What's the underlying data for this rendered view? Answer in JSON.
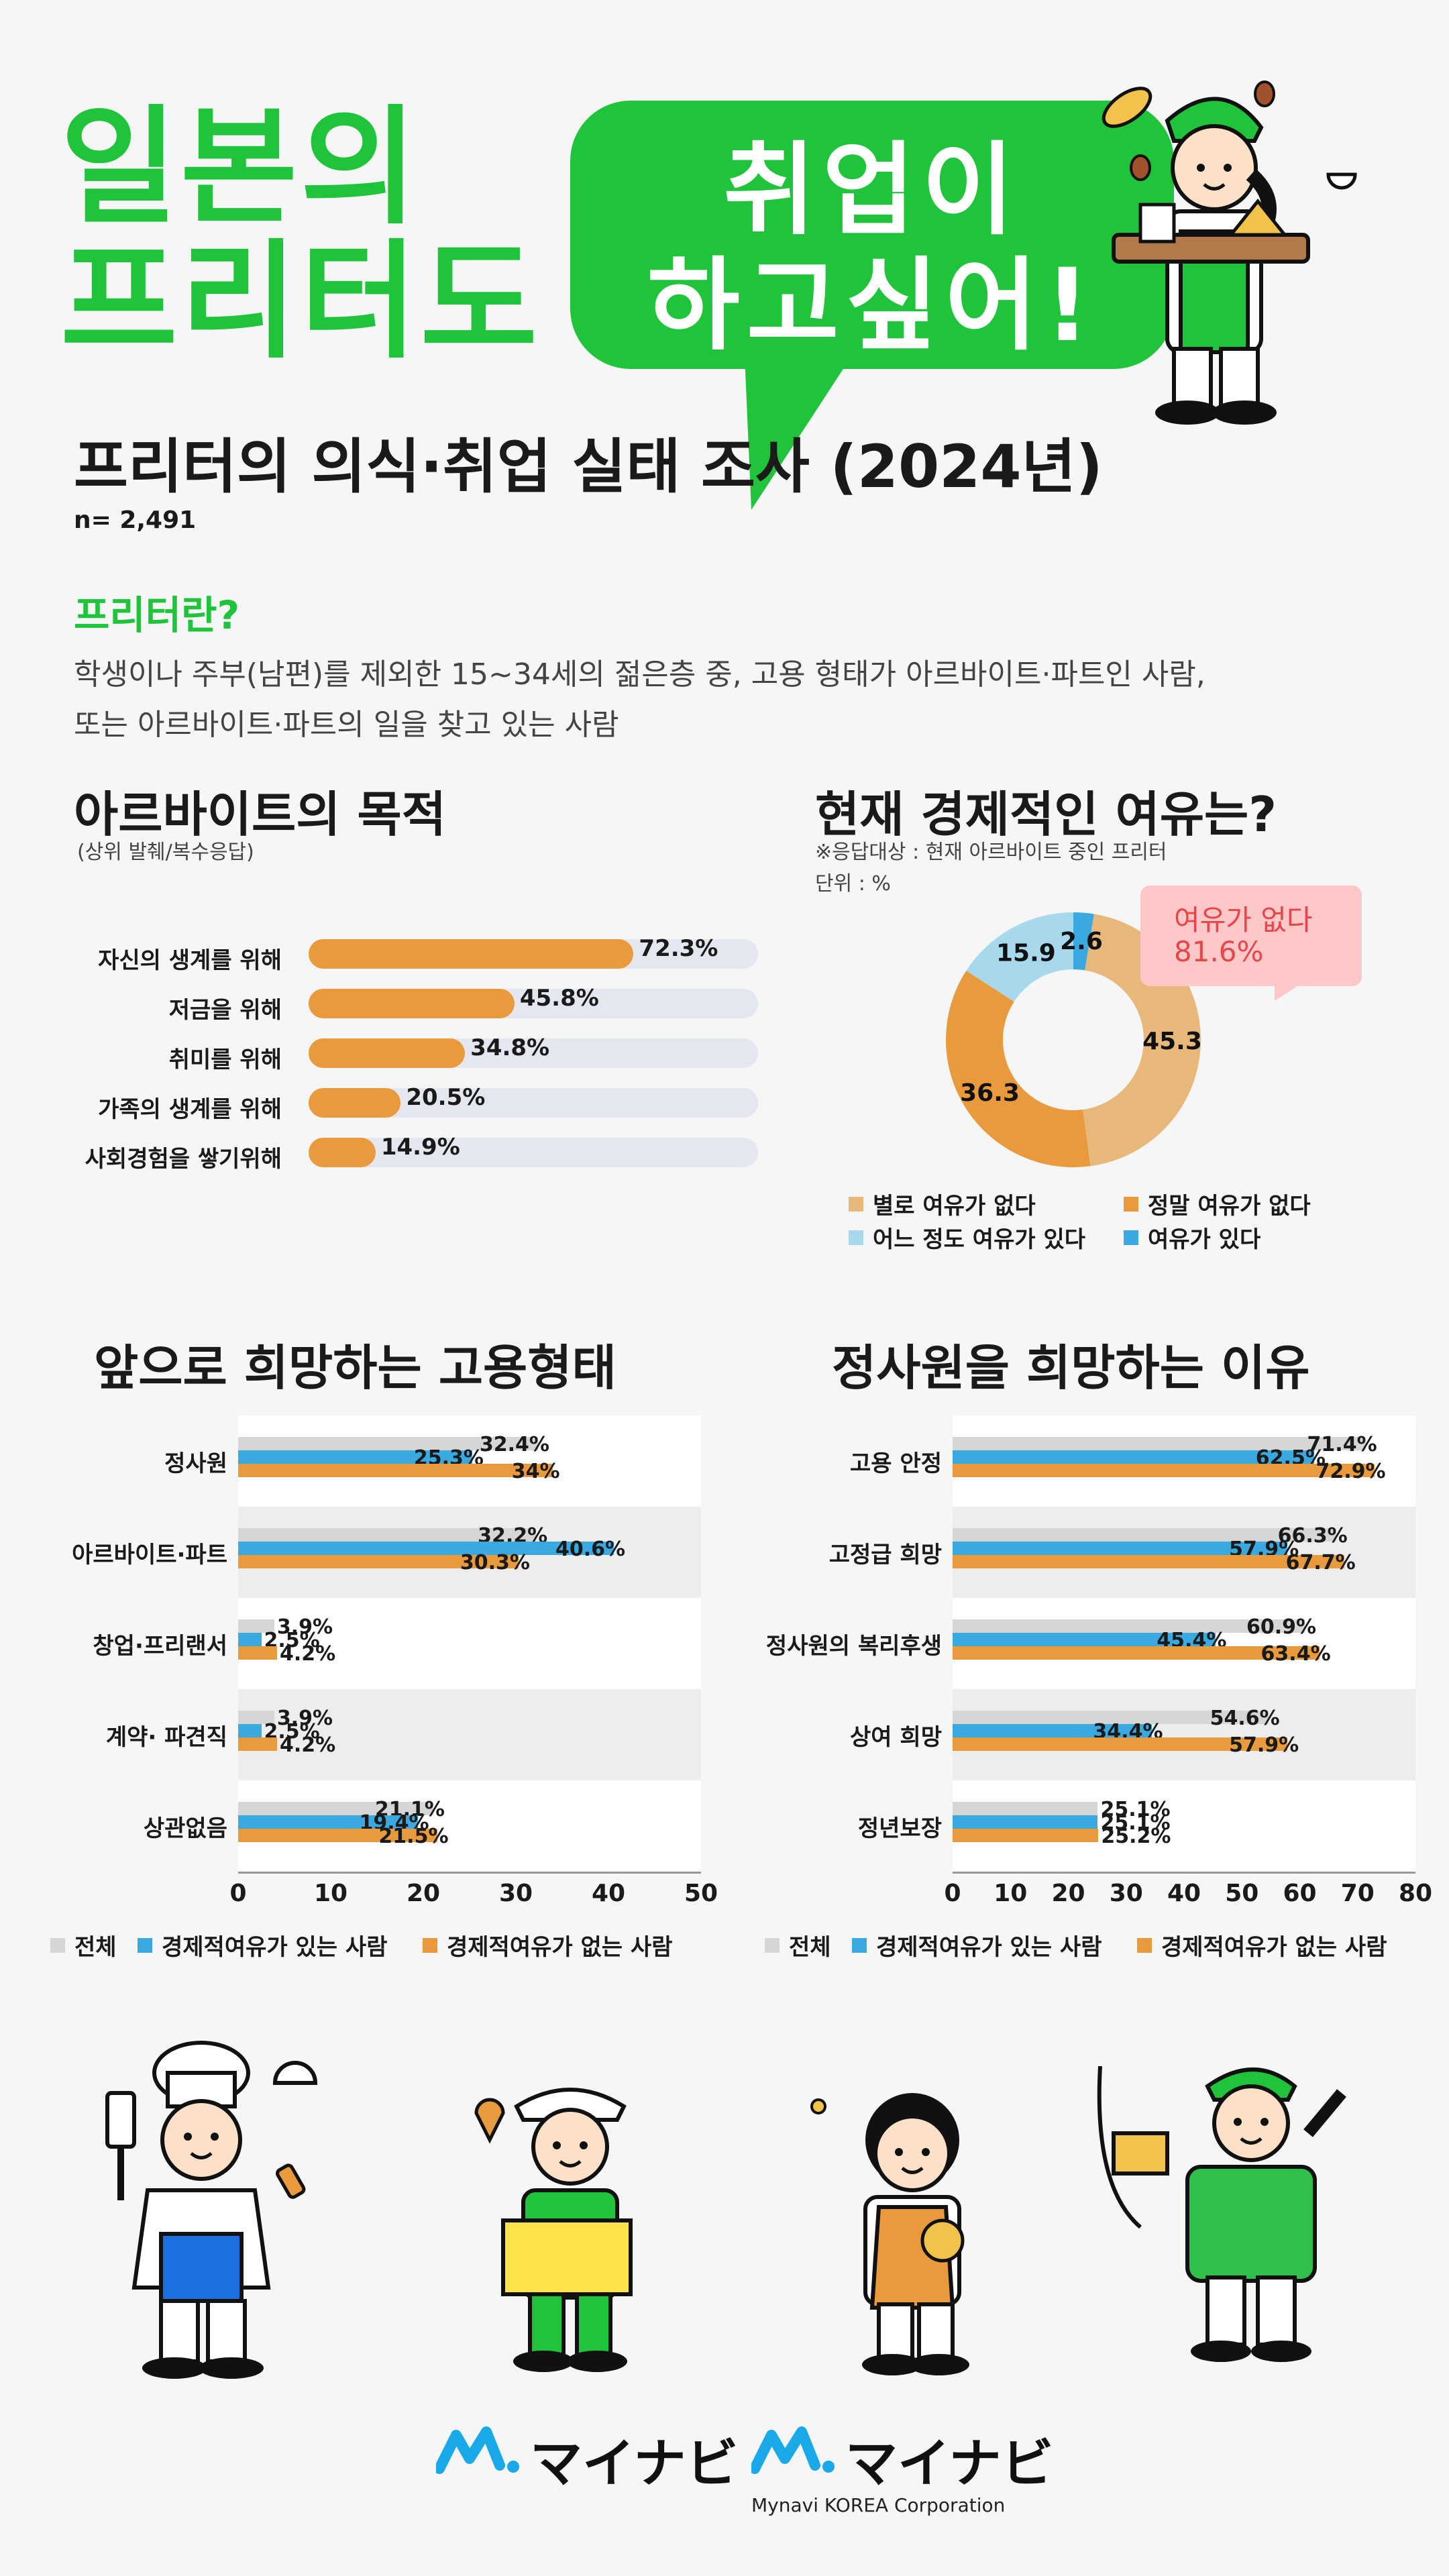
{
  "header": {
    "title_line1": "일본의",
    "title_line2": "프리터도",
    "bubble_line1": "취업이",
    "bubble_line2": "하고싶어!"
  },
  "survey": {
    "title": "프리터의 의식·취업 실태 조사 (2024년)",
    "n": "n= 2,491"
  },
  "definition": {
    "heading": "프리터란?",
    "line1": "학생이나 주부(남편)를 제외한 15~34세의 젊은층 중, 고용 형태가 아르바이트·파트인 사람,",
    "line2": "또는 아르바이트·파트의 일을 찾고 있는 사람"
  },
  "colors": {
    "orange": "#e89a3c",
    "blue": "#3aa9e0",
    "gray": "#d6d6d6",
    "light_orange": "#e8b77a",
    "light_blue": "#a8d8ec",
    "track": "#e4e7ef",
    "green": "#1fc43a",
    "pink_bg": "#ffc8c8",
    "pink_text": "#e8454a"
  },
  "chart_data": [
    {
      "type": "bar",
      "title": "아르바이트의 목적",
      "subtitle": "(상위 발췌/복수응답)",
      "categories": [
        "자신의 생계를 위해",
        "저금을 위해",
        "취미를 위해",
        "가족의 생계를 위해",
        "사회경험을 쌓기위해"
      ],
      "values": [
        72.3,
        45.8,
        34.8,
        20.5,
        14.9
      ],
      "value_labels": [
        "72.3%",
        "45.8%",
        "34.8%",
        "20.5%",
        "14.9%"
      ],
      "orientation": "horizontal",
      "xlim": [
        0,
        100
      ]
    },
    {
      "type": "pie",
      "title": "현재 경제적인 여유는?",
      "subtitle": "※응답대상 : 현재 아르바이트 중인 프리터",
      "unit": "단위 : %",
      "labels": [
        "별로 여유가 없다",
        "정말 여유가 없다",
        "어느 정도 여유가 있다",
        "여유가 있다"
      ],
      "values": [
        45.3,
        36.3,
        15.9,
        2.6
      ],
      "value_labels": [
        "45.3",
        "36.3",
        "15.9",
        "2.6"
      ],
      "colors": [
        "#e8b77a",
        "#e89a3c",
        "#a8d8ec",
        "#3aa9e0"
      ],
      "callout": "여유가 없다",
      "callout_value": "81.6%",
      "donut": true
    },
    {
      "type": "bar",
      "title": "앞으로 희망하는 고용형태",
      "orientation": "horizontal",
      "categories": [
        "정사원",
        "아르바이트·파트",
        "창업·프리랜서",
        "계약· 파견직",
        "상관없음"
      ],
      "series": [
        {
          "name": "전체",
          "values": [
            32.4,
            32.2,
            3.9,
            3.9,
            21.1
          ],
          "labels": [
            "32.4%",
            "32.2%",
            "3.9%",
            "3.9%",
            "21.1%"
          ]
        },
        {
          "name": "경제적여유가 있는 사람",
          "values": [
            25.3,
            40.6,
            2.5,
            2.5,
            19.4
          ],
          "labels": [
            "25.3%",
            "40.6%",
            "2.5%",
            "2.5%",
            "19.4%"
          ]
        },
        {
          "name": "경제적여유가 없는 사람",
          "values": [
            34,
            30.3,
            4.2,
            4.2,
            21.5
          ],
          "labels": [
            "34%",
            "30.3%",
            "4.2%",
            "4.2%",
            "21.5%"
          ]
        }
      ],
      "xlim": [
        0,
        50
      ],
      "ticks": [
        "0",
        "10",
        "20",
        "30",
        "40",
        "50"
      ],
      "legend_position": "bottom"
    },
    {
      "type": "bar",
      "title": "정사원을 희망하는 이유",
      "orientation": "horizontal",
      "categories": [
        "고용 안정",
        "고정급 희망",
        "정사원의 복리후생",
        "상여 희망",
        "정년보장"
      ],
      "series": [
        {
          "name": "전체",
          "values": [
            71.4,
            66.3,
            60.9,
            54.6,
            25.1
          ],
          "labels": [
            "71.4%",
            "66.3%",
            "60.9%",
            "54.6%",
            "25.1%"
          ]
        },
        {
          "name": "경제적여유가 있는 사람",
          "values": [
            62.5,
            57.9,
            45.4,
            34.4,
            25.1
          ],
          "labels": [
            "62.5%",
            "57.9%",
            "45.4%",
            "34.4%",
            "25.1%"
          ]
        },
        {
          "name": "경제적여유가 없는 사람",
          "values": [
            72.9,
            67.7,
            63.4,
            57.9,
            25.2
          ],
          "labels": [
            "72.9%",
            "67.7%",
            "63.4%",
            "57.9%",
            "25.2%"
          ]
        }
      ],
      "xlim": [
        0,
        80
      ],
      "ticks": [
        "0",
        "10",
        "20",
        "30",
        "40",
        "50",
        "60",
        "70",
        "80"
      ],
      "legend_position": "bottom"
    }
  ],
  "footer": {
    "logo1": "マイナビ",
    "logo2": "マイナビ",
    "logo2_sub": "Mynavi KOREA Corporation"
  }
}
